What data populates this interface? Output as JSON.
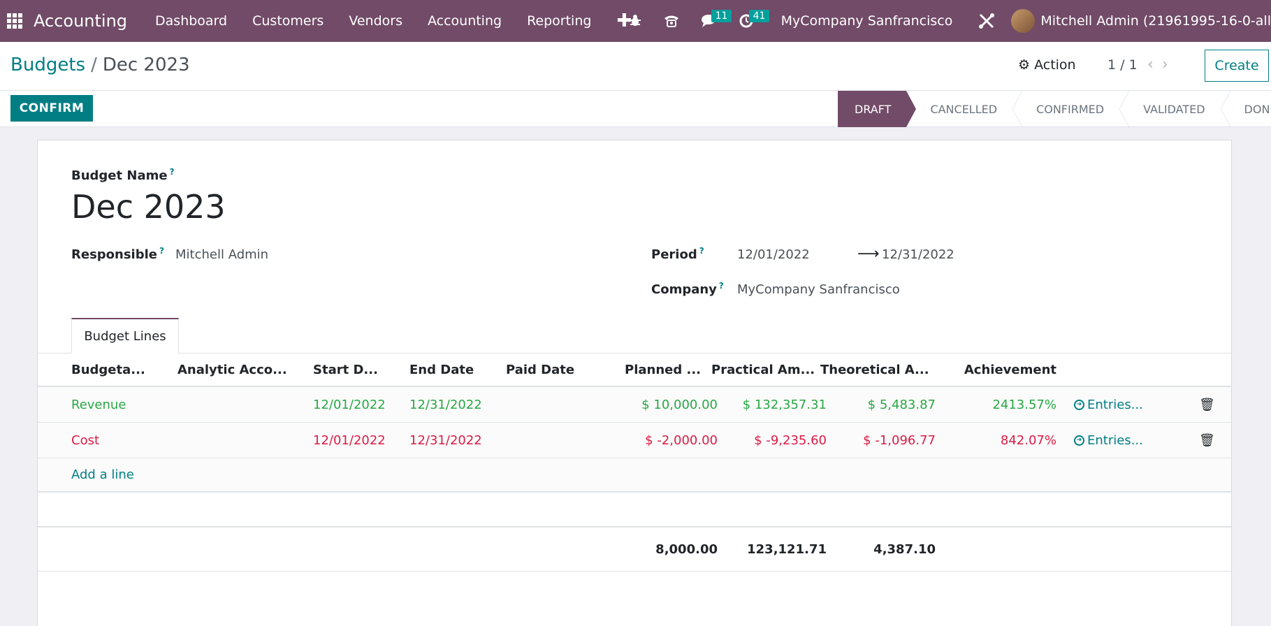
{
  "navbar": {
    "app_name": "Accounting",
    "menus": [
      "Dashboard",
      "Customers",
      "Vendors",
      "Accounting",
      "Reporting"
    ],
    "plus": "✚",
    "messages_count": "11",
    "activities_count": "41",
    "company": "MyCompany Sanfrancisco",
    "user": "Mitchell Admin (21961995-16-0-all"
  },
  "control": {
    "breadcrumb_parent": "Budgets",
    "breadcrumb_sep": "/",
    "breadcrumb_current": "Dec 2023",
    "action_label": "Action",
    "pager": "1 / 1",
    "create_label": "Create"
  },
  "statusbar": {
    "confirm_label": "CONFIRM",
    "stages": [
      "DRAFT",
      "CANCELLED",
      "CONFIRMED",
      "VALIDATED",
      "DONE"
    ],
    "active_stage": "DRAFT"
  },
  "form": {
    "budget_name_label": "Budget Name",
    "budget_name": "Dec 2023",
    "responsible_label": "Responsible",
    "responsible": "Mitchell Admin",
    "period_label": "Period",
    "period_start": "12/01/2022",
    "period_end": "12/31/2022",
    "company_label": "Company",
    "company": "MyCompany Sanfrancisco",
    "help_mark": "?"
  },
  "tabs": {
    "budget_lines": "Budget Lines"
  },
  "table": {
    "headers": {
      "budgetary": "Budgeta...",
      "analytic": "Analytic Acco...",
      "start": "Start D...",
      "end": "End Date",
      "paid": "Paid Date",
      "planned": "Planned ...",
      "practical": "Practical Am...",
      "theoretical": "Theoretical A...",
      "achievement": "Achievement"
    },
    "rows": [
      {
        "budgetary": "Revenue",
        "analytic": "",
        "start": "12/01/2022",
        "end": "12/31/2022",
        "paid": "",
        "planned": "$ 10,000.00",
        "practical": "$ 132,357.31",
        "theoretical": "$ 5,483.87",
        "achievement": "2413.57%",
        "entries": "Entries..."
      },
      {
        "budgetary": "Cost",
        "analytic": "",
        "start": "12/01/2022",
        "end": "12/31/2022",
        "paid": "",
        "planned": "$ -2,000.00",
        "practical": "$ -9,235.60",
        "theoretical": "$ -1,096.77",
        "achievement": "842.07%",
        "entries": "Entries..."
      }
    ],
    "add_line": "Add a line",
    "totals": {
      "planned": "8,000.00",
      "practical": "123,121.71",
      "theoretical": "4,387.10"
    }
  },
  "colors": {
    "brand": "#714b67",
    "accent": "#017e84",
    "positive": "#28a745",
    "negative": "#dc1b44"
  }
}
